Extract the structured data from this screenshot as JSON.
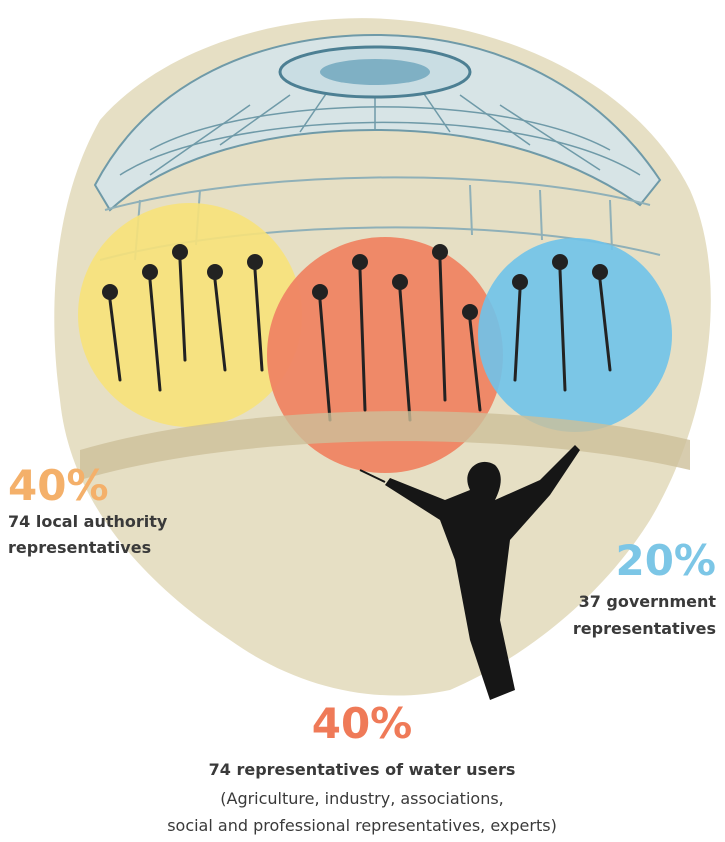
{
  "groups": [
    {
      "percent": "40%",
      "lines": [
        "74 local authority",
        "representatives"
      ]
    },
    {
      "percent": "20%",
      "lines": [
        "37 government",
        "representatives"
      ]
    },
    {
      "percent": "40%",
      "lines": [
        "74 representatives of water users"
      ],
      "details": [
        "(Agriculture, industry, associations,",
        "social and professional representatives, experts)"
      ]
    }
  ]
}
